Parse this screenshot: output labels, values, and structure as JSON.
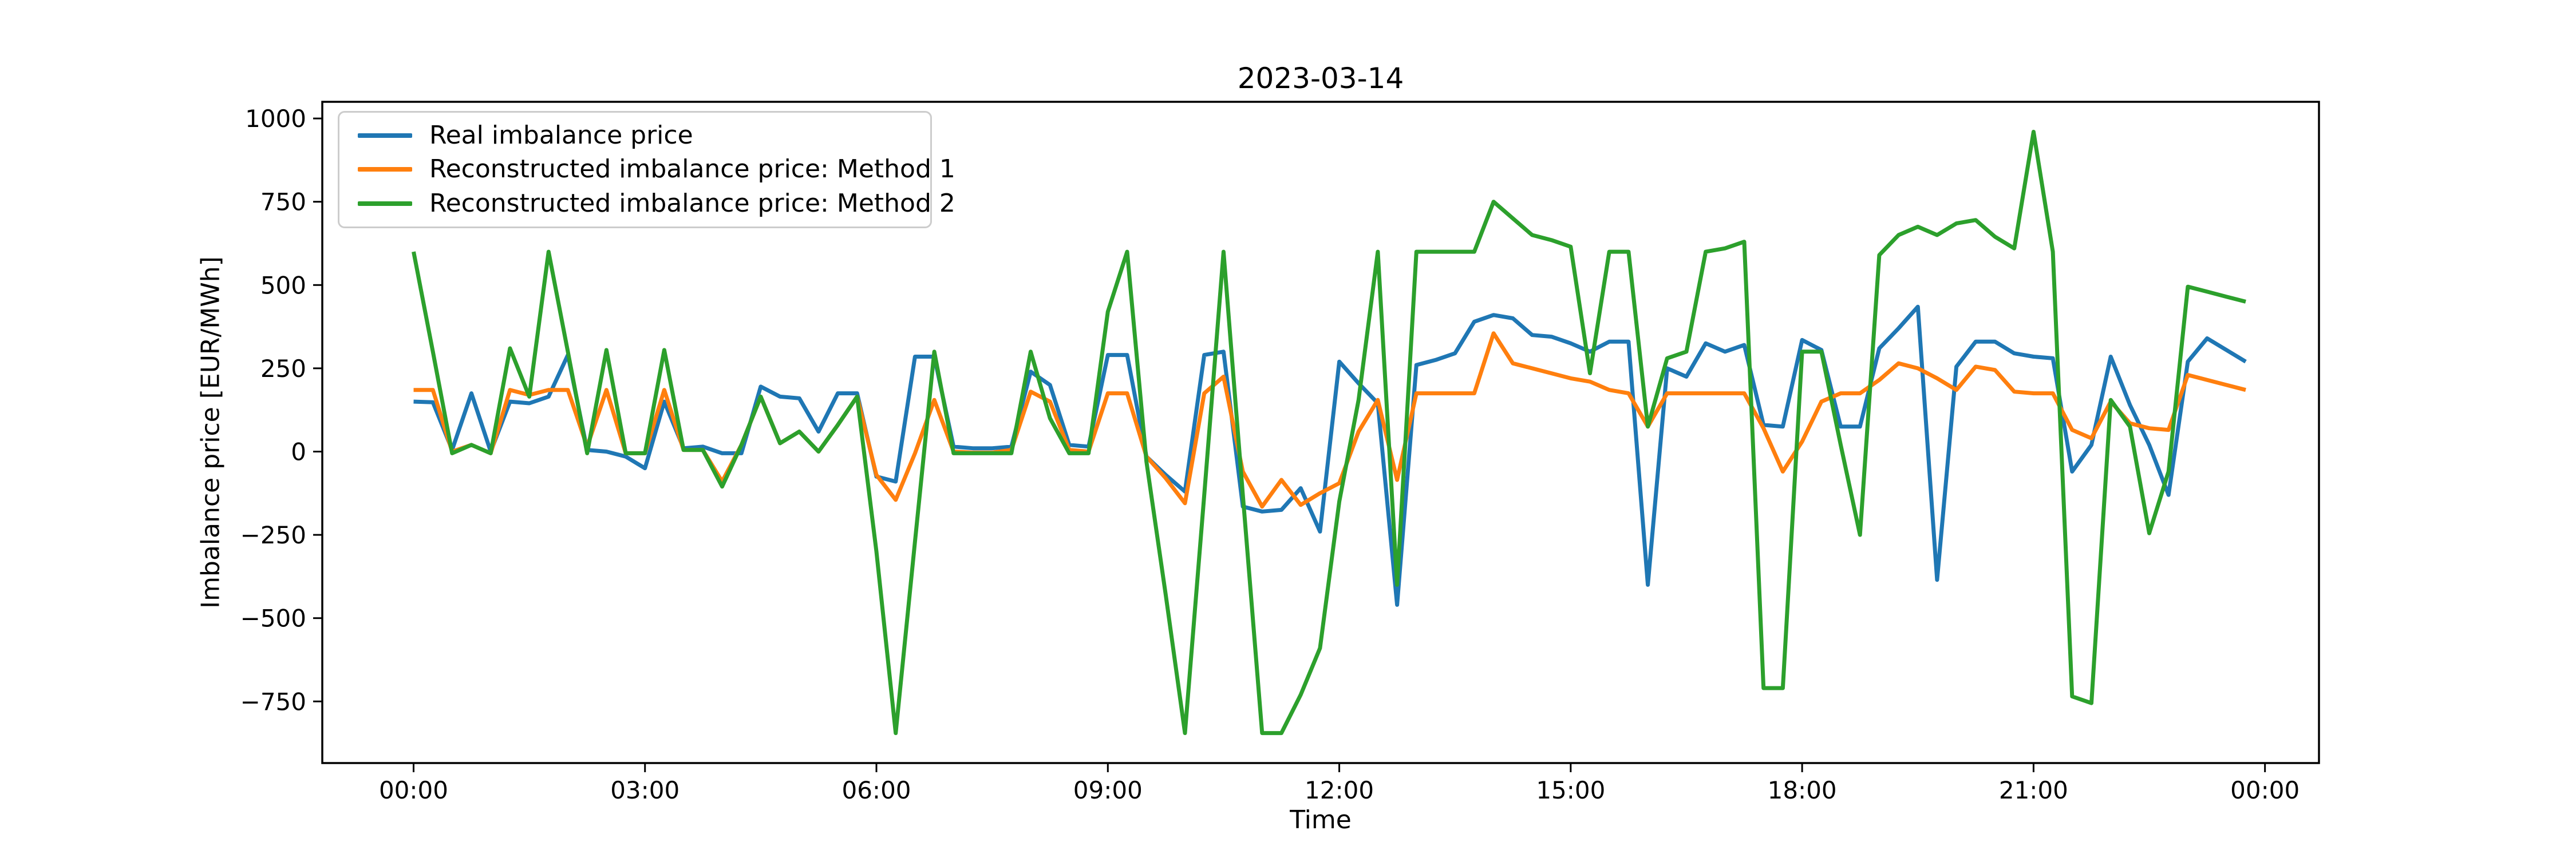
{
  "figure": {
    "title": "2023-03-14",
    "x_axis_label": "Time",
    "y_axis_label": "Imbalance price [EUR/MWh]"
  },
  "legend": {
    "items": [
      {
        "label": "Real imbalance price",
        "color": "#1f77b4"
      },
      {
        "label": "Reconstructed imbalance price: Method 1",
        "color": "#ff7f0e"
      },
      {
        "label": "Reconstructed imbalance price: Method 2",
        "color": "#2ca02c"
      }
    ]
  },
  "chart_data": {
    "type": "line",
    "title": "2023-03-14",
    "xlabel": "Time",
    "ylabel": "Imbalance price [EUR/MWh]",
    "x_interval_minutes": 15,
    "x": [
      "00:00",
      "00:15",
      "00:30",
      "00:45",
      "01:00",
      "01:15",
      "01:30",
      "01:45",
      "02:00",
      "02:15",
      "02:30",
      "02:45",
      "03:00",
      "03:15",
      "03:30",
      "03:45",
      "04:00",
      "04:15",
      "04:30",
      "04:45",
      "05:00",
      "05:15",
      "05:30",
      "05:45",
      "06:00",
      "06:15",
      "06:30",
      "06:45",
      "07:00",
      "07:15",
      "07:30",
      "07:45",
      "08:00",
      "08:15",
      "08:30",
      "08:45",
      "09:00",
      "09:15",
      "09:30",
      "09:45",
      "10:00",
      "10:15",
      "10:30",
      "10:45",
      "11:00",
      "11:15",
      "11:30",
      "11:45",
      "12:00",
      "12:15",
      "12:30",
      "12:45",
      "13:00",
      "13:15",
      "13:30",
      "13:45",
      "14:00",
      "14:15",
      "14:30",
      "14:45",
      "15:00",
      "15:15",
      "15:30",
      "15:45",
      "16:00",
      "16:15",
      "16:30",
      "16:45",
      "17:00",
      "17:15",
      "17:30",
      "17:45",
      "18:00",
      "18:15",
      "18:30",
      "18:45",
      "19:00",
      "19:15",
      "19:30",
      "19:45",
      "20:00",
      "20:15",
      "20:30",
      "20:45",
      "21:00",
      "21:15",
      "21:30",
      "21:45",
      "22:00",
      "22:15",
      "22:30",
      "22:45",
      "23:00",
      "23:15",
      "23:30",
      "23:45"
    ],
    "xtick_labels": [
      "00:00",
      "03:00",
      "06:00",
      "09:00",
      "12:00",
      "15:00",
      "18:00",
      "21:00",
      "00:00"
    ],
    "xtick_minutes": [
      0,
      180,
      360,
      540,
      720,
      900,
      1080,
      1260,
      1440
    ],
    "ytick_values": [
      1000,
      750,
      500,
      250,
      0,
      -250,
      -500,
      -750
    ],
    "xlim_minutes": [
      -71,
      1482
    ],
    "ylim": [
      -935,
      1050
    ],
    "grid": false,
    "legend_position": "upper left",
    "series": [
      {
        "name": "Real imbalance price",
        "color": "#1f77b4",
        "values": [
          150,
          148,
          5,
          175,
          0,
          150,
          145,
          165,
          290,
          5,
          0,
          -15,
          -50,
          150,
          10,
          15,
          -5,
          -5,
          195,
          165,
          160,
          60,
          175,
          175,
          -75,
          -90,
          285,
          285,
          15,
          10,
          10,
          15,
          240,
          200,
          20,
          15,
          290,
          290,
          -15,
          -70,
          -120,
          290,
          300,
          -165,
          -180,
          -175,
          -110,
          -240,
          270,
          205,
          145,
          -460,
          260,
          275,
          295,
          390,
          410,
          400,
          350,
          345,
          325,
          300,
          330,
          330,
          -400,
          250,
          225,
          325,
          300,
          320,
          80,
          75,
          335,
          305,
          75,
          75,
          310,
          370,
          435,
          -385,
          255,
          330,
          330,
          295,
          285,
          280,
          -60,
          20,
          285,
          140,
          20,
          -130,
          270,
          340,
          305,
          270
        ]
      },
      {
        "name": "Reconstructed imbalance price: Method 1",
        "color": "#ff7f0e",
        "values": [
          185,
          185,
          0,
          20,
          -5,
          185,
          170,
          185,
          185,
          15,
          185,
          -5,
          -5,
          185,
          5,
          5,
          -90,
          20,
          165,
          25,
          60,
          0,
          80,
          165,
          -70,
          -145,
          -5,
          155,
          0,
          -3,
          -3,
          5,
          180,
          150,
          5,
          0,
          175,
          175,
          -15,
          -80,
          -155,
          175,
          225,
          -60,
          -165,
          -85,
          -160,
          -125,
          -95,
          60,
          155,
          -85,
          175,
          175,
          175,
          175,
          355,
          265,
          250,
          235,
          220,
          210,
          185,
          175,
          75,
          175,
          175,
          175,
          175,
          175,
          70,
          -60,
          30,
          150,
          175,
          175,
          215,
          265,
          250,
          220,
          185,
          255,
          245,
          180,
          175,
          175,
          65,
          40,
          150,
          85,
          70,
          65,
          230,
          215,
          200,
          185
        ]
      },
      {
        "name": "Reconstructed imbalance price: Method 2",
        "color": "#2ca02c",
        "values": [
          600,
          300,
          -5,
          20,
          -5,
          310,
          165,
          600,
          300,
          -5,
          305,
          -5,
          -5,
          305,
          5,
          5,
          -105,
          20,
          165,
          25,
          60,
          0,
          80,
          165,
          -300,
          -845,
          -270,
          300,
          -5,
          -5,
          -5,
          -5,
          300,
          100,
          -5,
          -5,
          420,
          600,
          -30,
          -430,
          -845,
          -130,
          600,
          -130,
          -845,
          -845,
          -730,
          -590,
          -150,
          155,
          600,
          -400,
          600,
          600,
          600,
          600,
          750,
          700,
          650,
          635,
          615,
          235,
          600,
          600,
          75,
          280,
          300,
          600,
          610,
          630,
          -710,
          -710,
          300,
          300,
          20,
          -250,
          590,
          650,
          675,
          650,
          685,
          695,
          645,
          610,
          960,
          600,
          -735,
          -755,
          155,
          75,
          -245,
          -60,
          495,
          480,
          465,
          450
        ]
      }
    ]
  }
}
